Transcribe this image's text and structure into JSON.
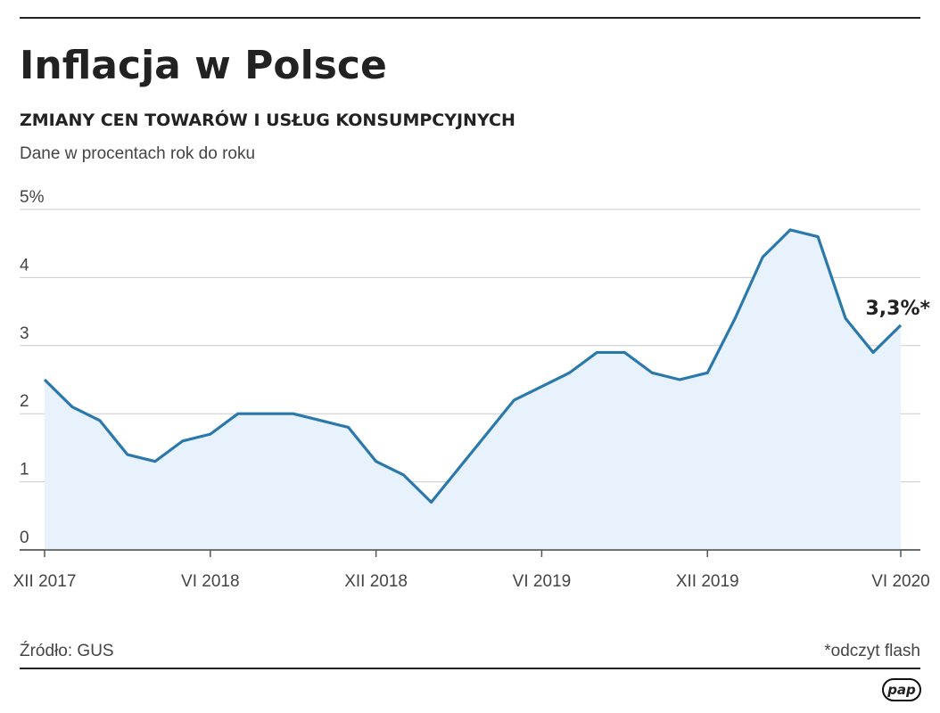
{
  "chart_data": {
    "type": "line",
    "title": "Inflacja w Polsce",
    "subtitle": "ZMIANY CEN TOWARÓW I USŁUG KONSUMPCYJNYCH",
    "note": "Dane w procentach rok do roku",
    "categories": [
      "XII 2017",
      null,
      null,
      null,
      null,
      null,
      "VI 2018",
      null,
      null,
      null,
      null,
      null,
      "XII 2018",
      null,
      null,
      null,
      null,
      null,
      "VI 2019",
      null,
      null,
      null,
      null,
      null,
      "XII 2019",
      null,
      null,
      null,
      null,
      null,
      null,
      "VI 2020"
    ],
    "values": [
      2.5,
      2.1,
      1.9,
      1.4,
      1.3,
      1.6,
      1.7,
      2.0,
      2.0,
      2.0,
      1.9,
      1.8,
      1.3,
      1.1,
      0.7,
      1.2,
      1.7,
      2.2,
      2.4,
      2.6,
      2.9,
      2.9,
      2.6,
      2.5,
      2.6,
      3.4,
      4.3,
      4.7,
      4.6,
      3.4,
      2.9,
      3.3
    ],
    "color": "#2b78ab",
    "area_color": "#e7f2fc",
    "ylim": [
      0,
      5
    ],
    "yticks": [
      0,
      1,
      2,
      3,
      4,
      {
        "value": 5,
        "label": "5%"
      }
    ],
    "grid": true,
    "annotation": "3,3%*",
    "source": "Źródło: GUS",
    "footnote": "*odczyt flash",
    "logo": "pap"
  }
}
